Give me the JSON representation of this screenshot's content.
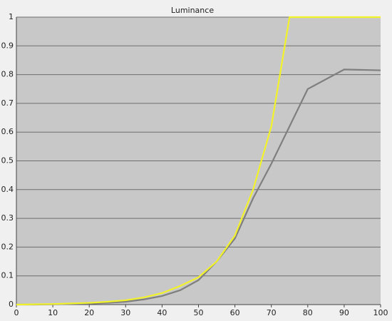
{
  "chart_data": {
    "type": "line",
    "title": "Luminance",
    "series": [
      {
        "color": "#7f7f7f",
        "x": [
          0,
          5,
          10,
          15,
          20,
          25,
          30,
          35,
          40,
          45,
          50,
          55,
          60,
          65,
          70,
          80,
          90,
          100
        ],
        "values": [
          0,
          0,
          0.001,
          0.002,
          0.003,
          0.006,
          0.01,
          0.018,
          0.03,
          0.05,
          0.085,
          0.15,
          0.23,
          0.37,
          0.49,
          0.75,
          0.818,
          0.815
        ]
      },
      {
        "color": "#f2f22a",
        "x": [
          0,
          5,
          10,
          15,
          20,
          25,
          30,
          35,
          40,
          45,
          50,
          55,
          60,
          65,
          70,
          75,
          100
        ],
        "values": [
          0,
          0.001,
          0.002,
          0.004,
          0.006,
          0.01,
          0.015,
          0.025,
          0.04,
          0.065,
          0.095,
          0.15,
          0.24,
          0.4,
          0.62,
          1,
          1
        ]
      }
    ],
    "xlim": [
      0,
      100
    ],
    "xticks": [
      0,
      10,
      20,
      30,
      40,
      50,
      60,
      70,
      80,
      90,
      100
    ],
    "ylim": [
      0,
      1
    ],
    "yticks": [
      0,
      0.1,
      0.2,
      0.3,
      0.4,
      0.5,
      0.6,
      0.7,
      0.8,
      0.9,
      1
    ],
    "grid": true
  }
}
